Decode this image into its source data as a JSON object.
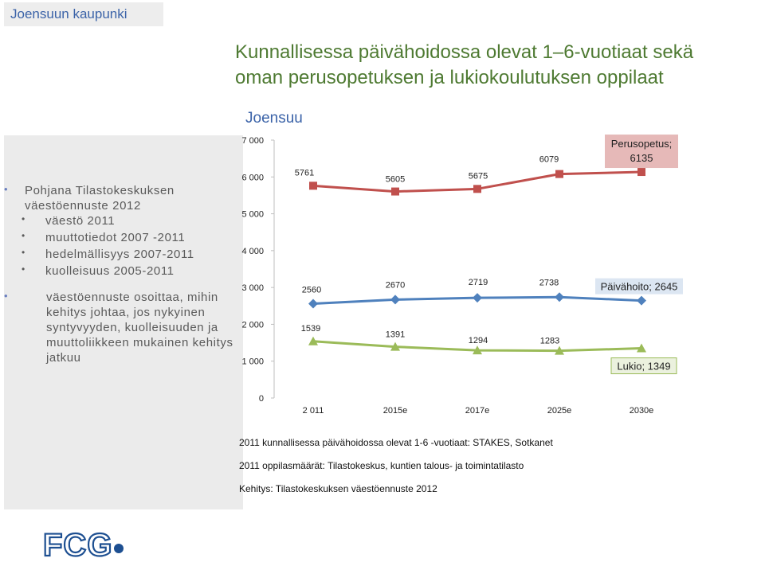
{
  "header": {
    "org_name": "Joensuun kaupunki",
    "title_line1": "Kunnallisessa päivähoidossa olevat 1–6-vuotiaat sekä",
    "title_line2": "oman perusopetuksen ja lukiokoulutuksen oppilaat"
  },
  "sidebar": {
    "items": [
      {
        "text_lines": [
          "Pohjana Tilastokeskuksen",
          "väestöennuste 2012"
        ],
        "level": 1
      },
      {
        "text_lines": [
          "väestö 2011"
        ],
        "level": 2
      },
      {
        "text_lines": [
          "muuttotiedot 2007 -2011"
        ],
        "level": 2
      },
      {
        "text_lines": [
          "hedelmällisyys 2007-2011"
        ],
        "level": 2
      },
      {
        "text_lines": [
          "kuolleisuus 2005-2011"
        ],
        "level": 2
      },
      {
        "text_lines": [
          "väestöennuste osoittaa, mihin",
          "kehitys johtaa, jos nykyinen",
          "syntyvyyden, kuolleisuuden ja",
          "muuttoliikkeen mukainen kehitys",
          "jatkuu"
        ],
        "level": 1
      }
    ]
  },
  "chart_data": {
    "type": "line",
    "title": "Joensuu",
    "categories": [
      "2 011",
      "2015e",
      "2017e",
      "2025e",
      "2030e"
    ],
    "ylim": [
      0,
      7000
    ],
    "yticks": [
      0,
      1000,
      2000,
      3000,
      4000,
      5000,
      6000,
      7000
    ],
    "ytick_labels": [
      "0",
      "1 000",
      "2 000",
      "3 000",
      "4 000",
      "5 000",
      "6 000",
      "7 000"
    ],
    "grid": false,
    "series": [
      {
        "name": "Perusopetus",
        "end_label": [
          "Perusopetus;",
          "6135"
        ],
        "values": [
          5761,
          5605,
          5675,
          6079,
          6135
        ],
        "value_labels": [
          "5761",
          "5605",
          "5675",
          "6079",
          ""
        ],
        "color": "#c0504d",
        "marker": "square",
        "label_bg": "#e6b9b8"
      },
      {
        "name": "Päivähoito",
        "end_label": [
          "Päivähoito; 2645"
        ],
        "values": [
          2560,
          2670,
          2719,
          2738,
          2645
        ],
        "value_labels": [
          "2560",
          "2670",
          "2719",
          "2738",
          ""
        ],
        "color": "#4f81bd",
        "marker": "diamond",
        "label_bg": "#dce6f2"
      },
      {
        "name": "Lukio",
        "end_label": [
          "Lukio; 1349"
        ],
        "values": [
          1539,
          1391,
          1294,
          1283,
          1349
        ],
        "value_labels": [
          "1539",
          "1391",
          "1294",
          "1283",
          ""
        ],
        "color": "#9bbb59",
        "marker": "triangle",
        "label_bg": "#ebf1de"
      }
    ]
  },
  "sources": [
    "2011 kunnallisessa päivähoidossa  olevat 1-6 -vuotiaat:  STAKES, Sotkanet",
    "2011 oppilasmäärät:  Tilastokeskus, kuntien talous- ja toimintatilasto",
    "Kehitys: Tilastokeskuksen väestöennuste  2012"
  ],
  "logo": {
    "text": "FCG",
    "color": "#1d4f91"
  }
}
